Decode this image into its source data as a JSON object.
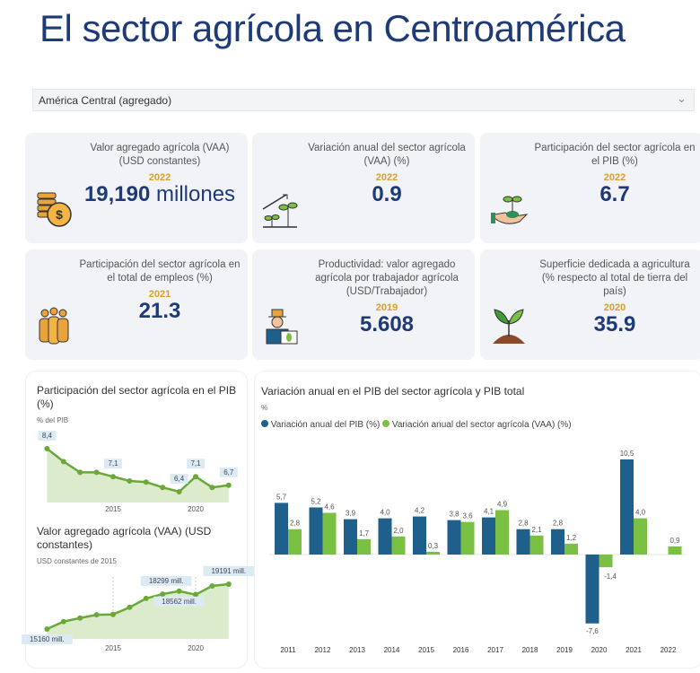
{
  "title": "El sector agrícola en Centroamérica",
  "selector": {
    "value": "América Central (agregado)",
    "icon": "chevron-down-icon"
  },
  "cards": [
    {
      "label": "Valor agregado agrícola (VAA) (USD constantes)",
      "year": "2022",
      "value": "19,190",
      "unit": "millones",
      "icon": "coins-dollar-icon"
    },
    {
      "label": "Variación anual del sector agrícola (VAA) (%)",
      "year": "2022",
      "value": "0.9",
      "unit": "",
      "icon": "growing-plants-icon"
    },
    {
      "label": "Participación del sector agrícola en el PIB (%)",
      "year": "2022",
      "value": "6.7",
      "unit": "",
      "icon": "hand-plant-icon"
    },
    {
      "label": "Participación del sector agrícola en el total de empleos (%)",
      "year": "2021",
      "value": "21.3",
      "unit": "",
      "icon": "people-group-icon"
    },
    {
      "label": "Productividad: valor agregado agrícola por trabajador agrícola (USD/Trabajador)",
      "year": "2019",
      "value": "5.608",
      "unit": "",
      "icon": "farmer-icon"
    },
    {
      "label": "Superficie dedicada a agricultura (% respecto al total de tierra del país)",
      "year": "2020",
      "value": "35.9",
      "unit": "",
      "icon": "sprout-soil-icon"
    }
  ],
  "colors": {
    "title": "#1e3a78",
    "year": "#d9a02a",
    "pib": "#1f5f8b",
    "vaa": "#7ac143",
    "area": "#dcebcc"
  },
  "chart_data": [
    {
      "type": "area",
      "title": "Participación del sector agrícola en el PIB (%)",
      "ylabel": "% del PIB",
      "x": [
        2011,
        2012,
        2013,
        2014,
        2015,
        2016,
        2017,
        2018,
        2019,
        2020,
        2021,
        2022
      ],
      "values": [
        8.4,
        7.8,
        7.3,
        7.3,
        7.1,
        6.9,
        6.85,
        6.6,
        6.4,
        7.1,
        6.6,
        6.7
      ],
      "data_labels": {
        "2011": "8,4",
        "2015": "7,1",
        "2019": "6,4",
        "2020": "7,1",
        "2022": "6,7"
      },
      "x_ticks": [
        "2015",
        "2020"
      ]
    },
    {
      "type": "area",
      "title": "Valor agregado agrícola (VAA) (USD constantes)",
      "ylabel": "USD constantes de 2015",
      "x": [
        2011,
        2012,
        2013,
        2014,
        2015,
        2016,
        2017,
        2018,
        2019,
        2020,
        2021,
        2022
      ],
      "values": [
        15160,
        15830,
        16150,
        16440,
        16470,
        17110,
        17910,
        18299,
        18562,
        18250,
        19030,
        19191
      ],
      "data_labels": {
        "2011": "15160 mill.",
        "2018": "18299 mill.",
        "2019": "18562 mill.",
        "2022": "19191 mill."
      },
      "x_ticks": [
        "2015",
        "2020"
      ]
    },
    {
      "type": "bar",
      "title": "Variación anual en el PIB del sector agrícola y PIB total",
      "ylabel": "%",
      "legend": "top-left",
      "categories": [
        "2011",
        "2012",
        "2013",
        "2014",
        "2015",
        "2016",
        "2017",
        "2018",
        "2019",
        "2020",
        "2021",
        "2022"
      ],
      "series": [
        {
          "name": "Variación anual del PIB (%)",
          "values": [
            5.7,
            5.2,
            3.9,
            4.0,
            4.2,
            3.8,
            4.1,
            2.8,
            2.8,
            -7.6,
            10.5,
            null
          ],
          "labels": [
            "5,7",
            "5,2",
            "3,9",
            "4,0",
            "4,2",
            "3,8",
            "4,1",
            "2,8",
            "2,8",
            "-7,6",
            "10,5",
            ""
          ]
        },
        {
          "name": "Variación anual del sector agrícola (VAA) (%)",
          "values": [
            2.8,
            4.6,
            1.7,
            2.0,
            0.3,
            3.6,
            4.9,
            2.1,
            1.2,
            -1.4,
            4.0,
            0.9
          ],
          "labels": [
            "2,8",
            "4,6",
            "1,7",
            "2,0",
            "0,3",
            "3,6",
            "4,9",
            "2,1",
            "1,2",
            "-1,4",
            "4,0",
            "0,9"
          ]
        }
      ]
    }
  ]
}
